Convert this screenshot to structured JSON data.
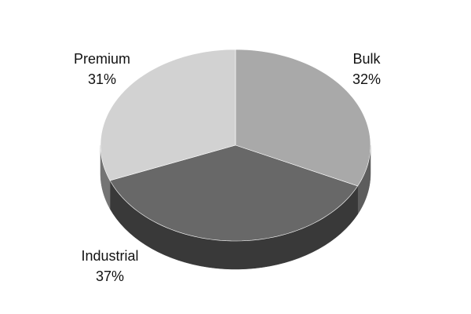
{
  "chart_data": {
    "type": "pie",
    "categories": [
      "Bulk",
      "Industrial",
      "Premium"
    ],
    "values": [
      32,
      37,
      31
    ],
    "value_labels": [
      "32%",
      "37%",
      "31%"
    ],
    "colors": [
      "#a9a9a9",
      "#686868",
      "#d2d2d2"
    ]
  }
}
